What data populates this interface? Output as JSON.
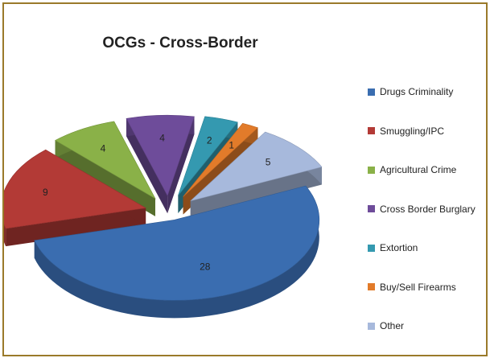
{
  "chart_data": {
    "type": "pie",
    "title": "OCGs - Cross-Border",
    "categories": [
      "Drugs Criminality",
      "Smuggling/IPC",
      "Agricultural Crime",
      "Cross Border Burglary",
      "Extortion",
      "Buy/Sell Firearms",
      "Other"
    ],
    "values": [
      28,
      9,
      4,
      4,
      2,
      1,
      5
    ],
    "colors": [
      "#3a6db0",
      "#b33a36",
      "#8ab148",
      "#6e4c9a",
      "#3499b0",
      "#e27b2a",
      "#a7b9dc"
    ],
    "legend_position": "right",
    "exploded": true,
    "three_d": true
  }
}
